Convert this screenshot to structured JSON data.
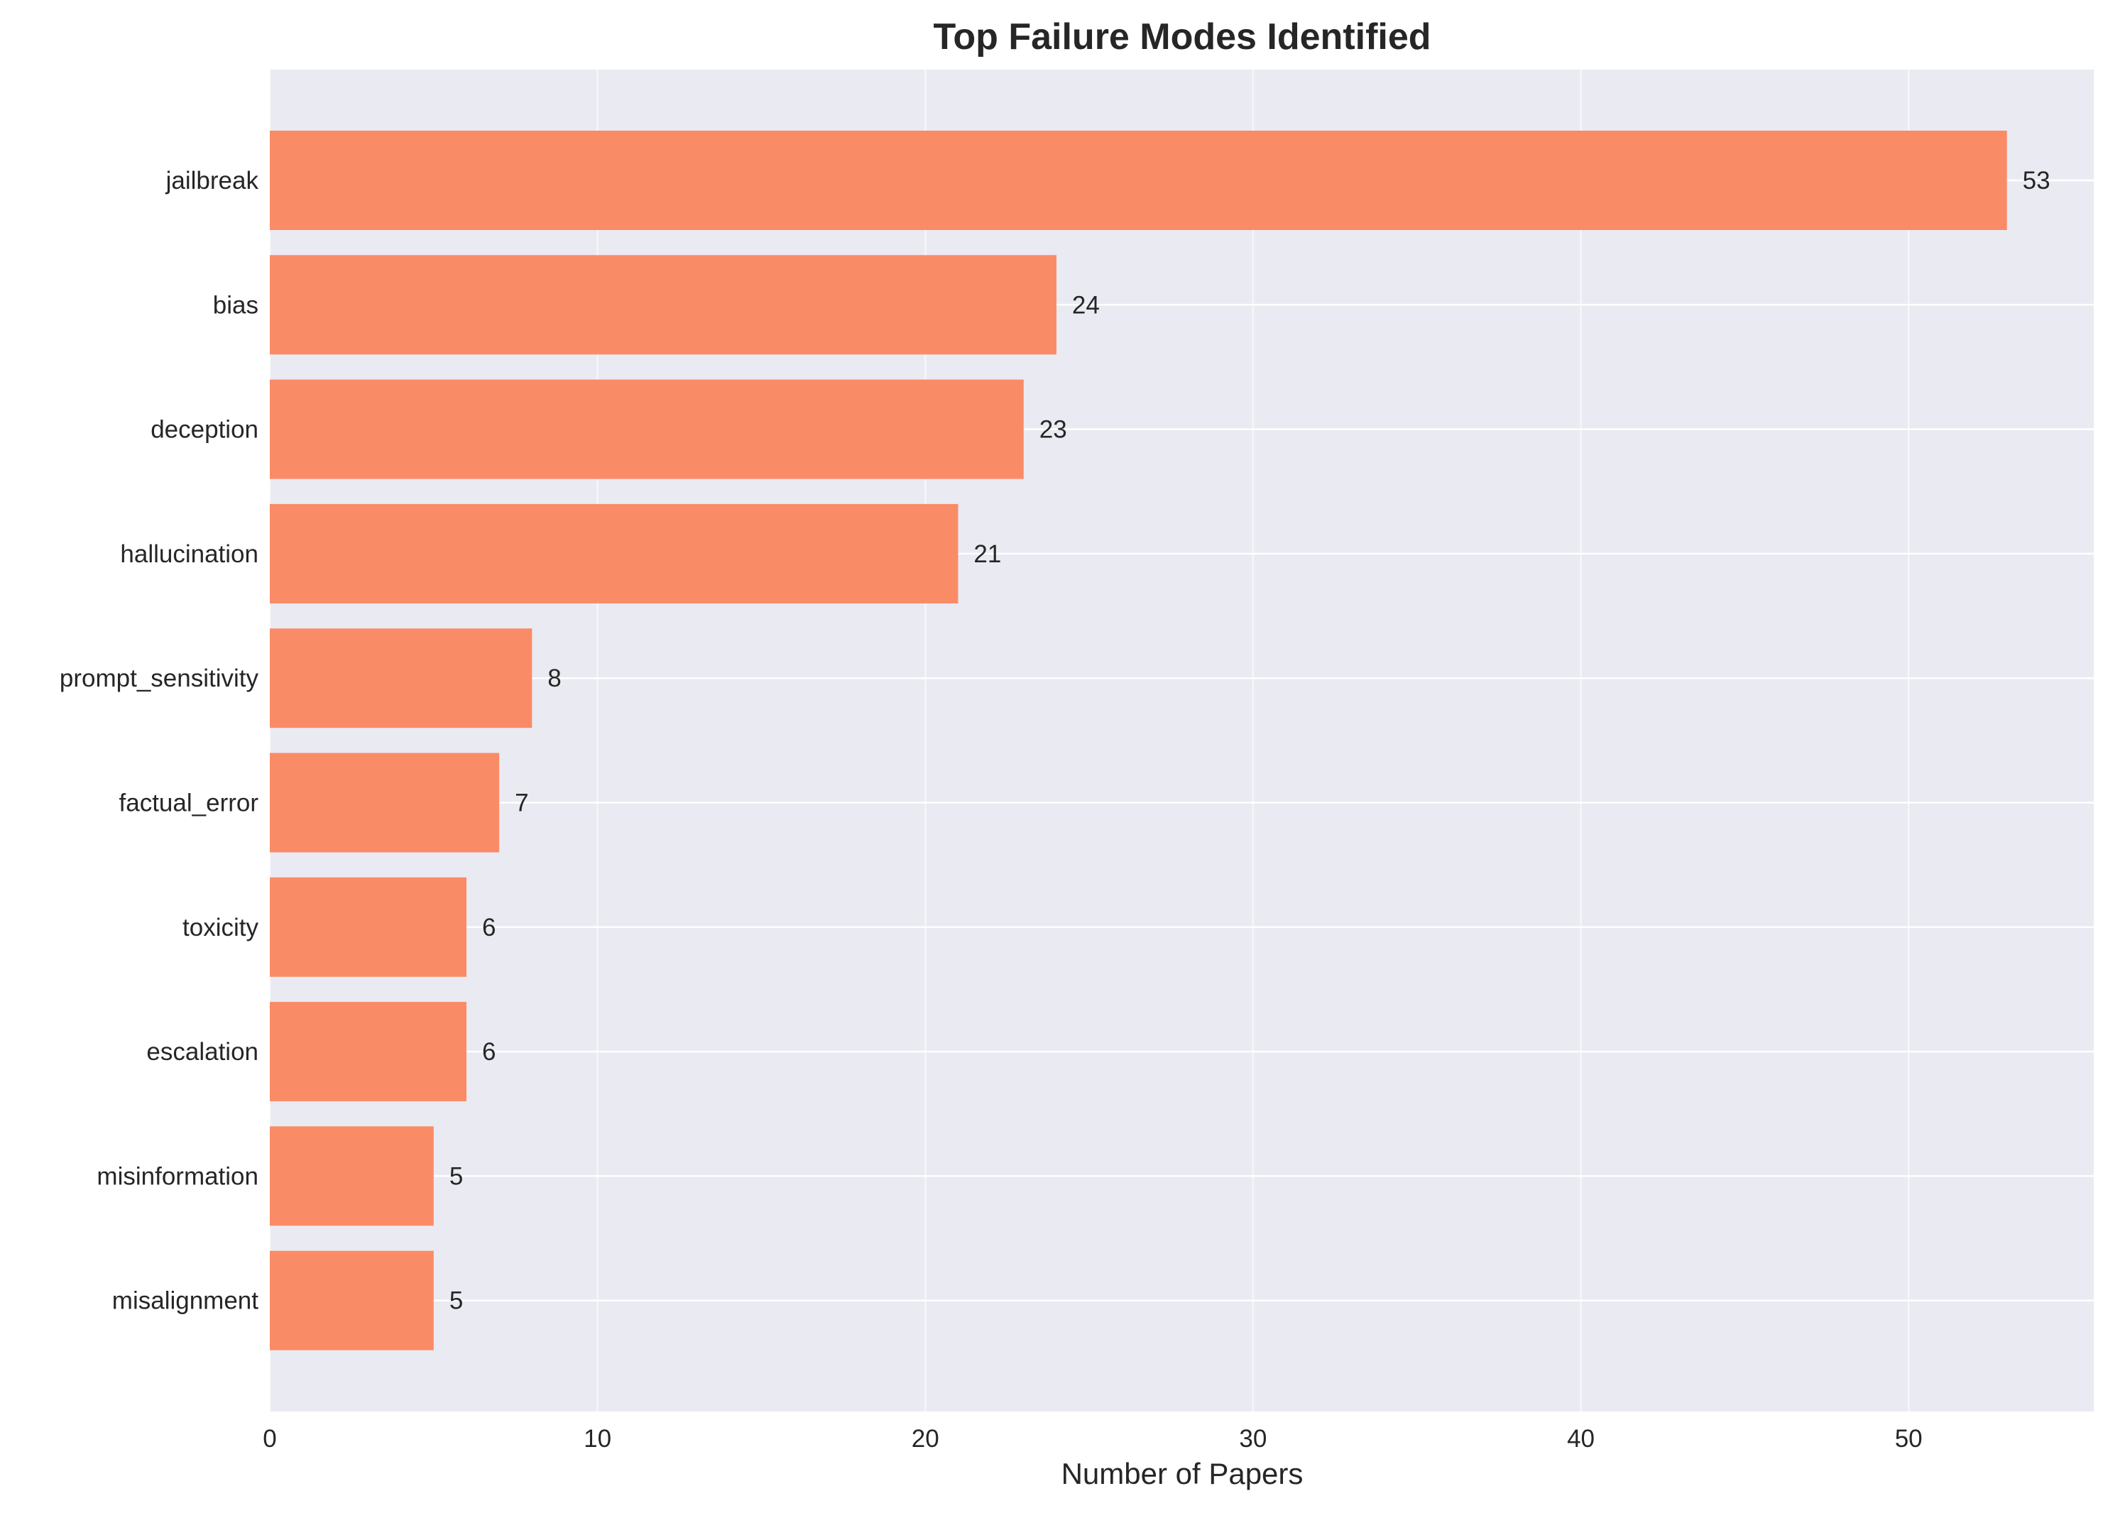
{
  "chart_data": {
    "type": "bar",
    "orientation": "horizontal",
    "title": "Top Failure Modes Identified",
    "xlabel": "Number of Papers",
    "ylabel": "",
    "categories": [
      "jailbreak",
      "bias",
      "deception",
      "hallucination",
      "prompt_sensitivity",
      "factual_error",
      "toxicity",
      "escalation",
      "misinformation",
      "misalignment"
    ],
    "values": [
      53,
      24,
      23,
      21,
      8,
      7,
      6,
      6,
      5,
      5
    ],
    "xlim": [
      0,
      55.65
    ],
    "xticks": [
      0,
      10,
      20,
      30,
      40,
      50
    ],
    "grid": true,
    "legend": "none",
    "colors": {
      "bar": "#fa8b67",
      "plot_background": "#eaeaf2",
      "grid": "#ffffff",
      "text": "#262626"
    }
  }
}
